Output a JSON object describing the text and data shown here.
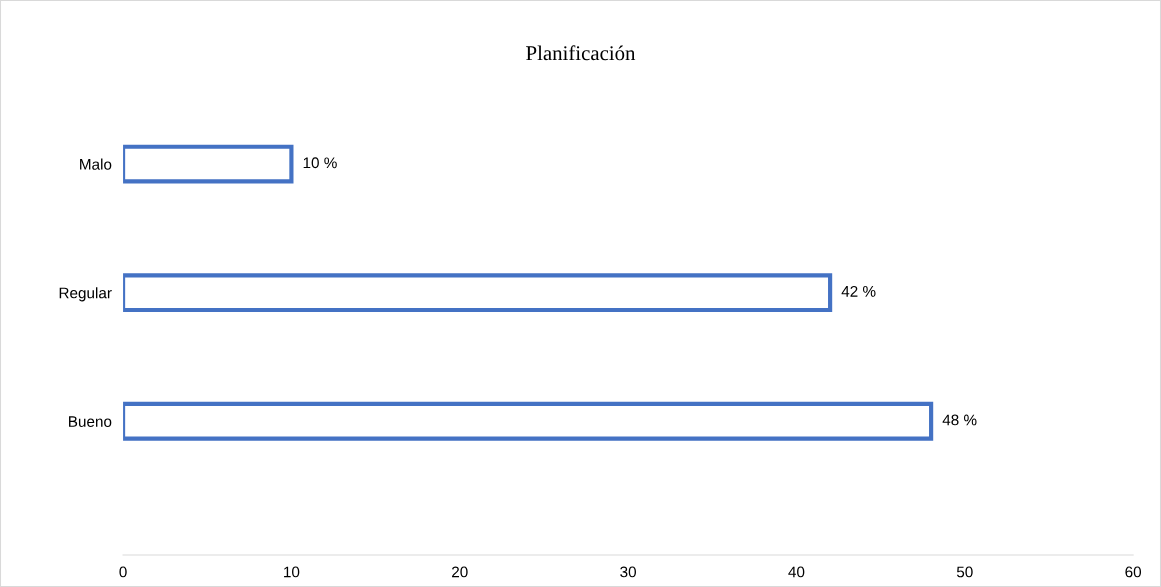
{
  "chart_data": {
    "type": "bar",
    "orientation": "horizontal",
    "title": "Planificación",
    "categories": [
      "Malo",
      "Regular",
      "Bueno"
    ],
    "values": [
      10,
      42,
      48
    ],
    "value_labels": [
      "10 %",
      "42 %",
      "48 %"
    ],
    "color": "#4472c4",
    "xlim": [
      0,
      60
    ],
    "xticks": [
      0,
      10,
      20,
      30,
      40,
      50,
      60
    ],
    "grid": false,
    "legend": false
  }
}
